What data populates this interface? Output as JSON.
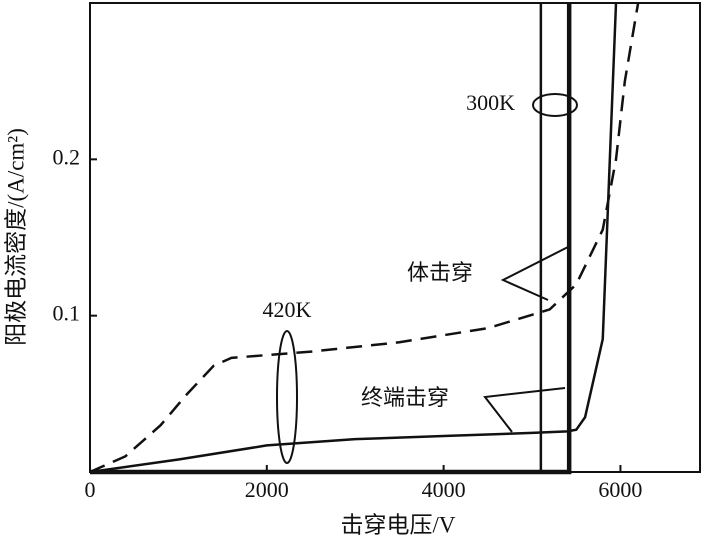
{
  "chart_data": {
    "type": "line",
    "xlabel": "击穿电压/V",
    "ylabel": "阳极电流密度/(A/cm²)",
    "xlim": [
      0,
      6900
    ],
    "ylim": [
      0,
      0.3
    ],
    "xticks": [
      0,
      2000,
      4000,
      6000
    ],
    "yticks": [
      0.1,
      0.2
    ],
    "series": [
      {
        "color": "#111",
        "dash": true,
        "line_width": 2.5,
        "x": [
          0,
          400,
          800,
          1100,
          1400,
          1600,
          2500,
          3500,
          4500,
          5200,
          5500,
          5800,
          5950,
          6050,
          6200
        ],
        "values": [
          0,
          0.01,
          0.03,
          0.05,
          0.068,
          0.073,
          0.077,
          0.083,
          0.092,
          0.104,
          0.12,
          0.155,
          0.2,
          0.25,
          0.3
        ]
      },
      {
        "color": "#111",
        "dash": false,
        "line_width": 2.5,
        "x": [
          0,
          1000,
          2000,
          3000,
          4000,
          5000,
          5400,
          5500,
          5600,
          5800,
          5880,
          5950
        ],
        "values": [
          0,
          0.008,
          0.017,
          0.021,
          0.023,
          0.025,
          0.026,
          0.027,
          0.035,
          0.085,
          0.2,
          0.3
        ]
      },
      {
        "color": "#111",
        "dash": false,
        "line_width": 2.5,
        "x": [
          0,
          5100,
          5100
        ],
        "values": [
          0,
          0,
          0.3
        ]
      },
      {
        "color": "#111",
        "dash": false,
        "line_width": 4.5,
        "x": [
          0,
          5420,
          5420
        ],
        "values": [
          0,
          0,
          0.3
        ]
      }
    ],
    "annotations": [
      "300K",
      "420K",
      "体击穿",
      "终端击穿"
    ]
  }
}
